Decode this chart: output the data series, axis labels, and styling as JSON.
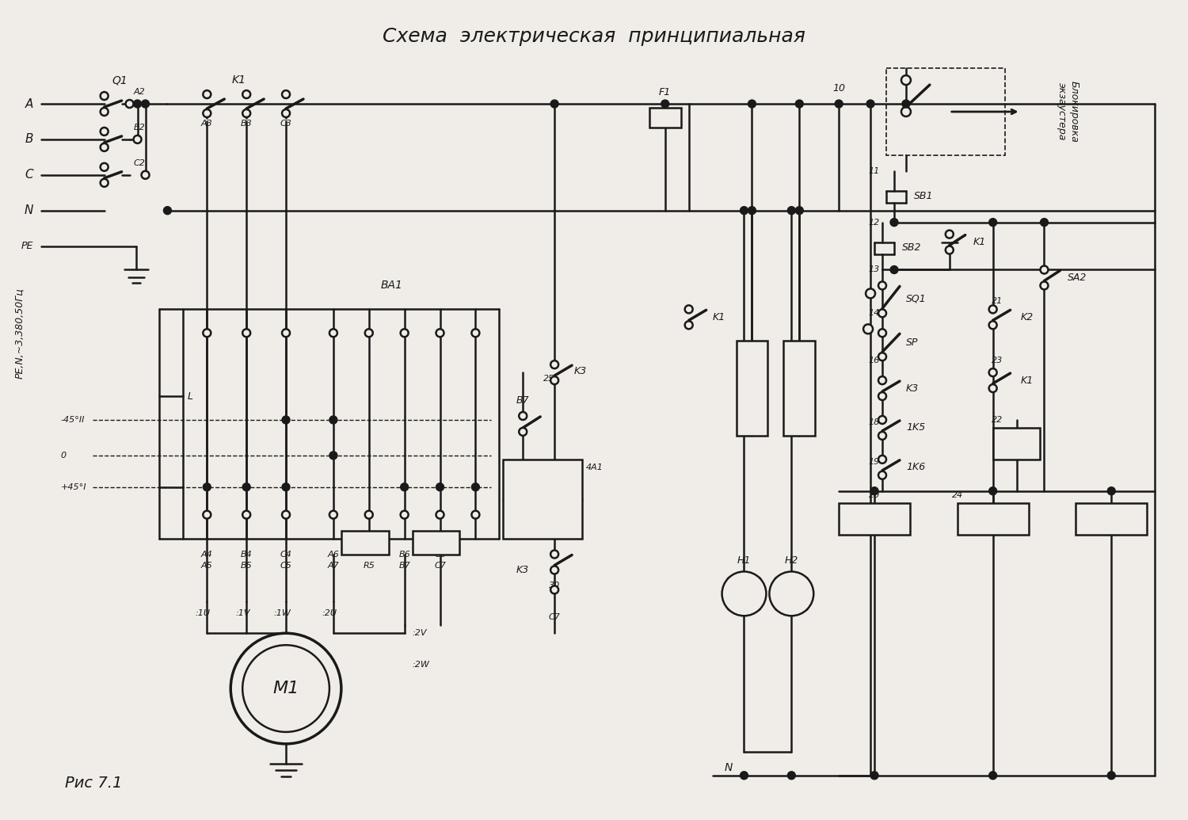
{
  "title": "Схема  электрическая  принципиальная",
  "fig_label": "Рис 7.1",
  "supply_label": "PE,N,~3,380,50Гц",
  "bg_color": "#f0ede8",
  "line_color": "#1a1a1a"
}
